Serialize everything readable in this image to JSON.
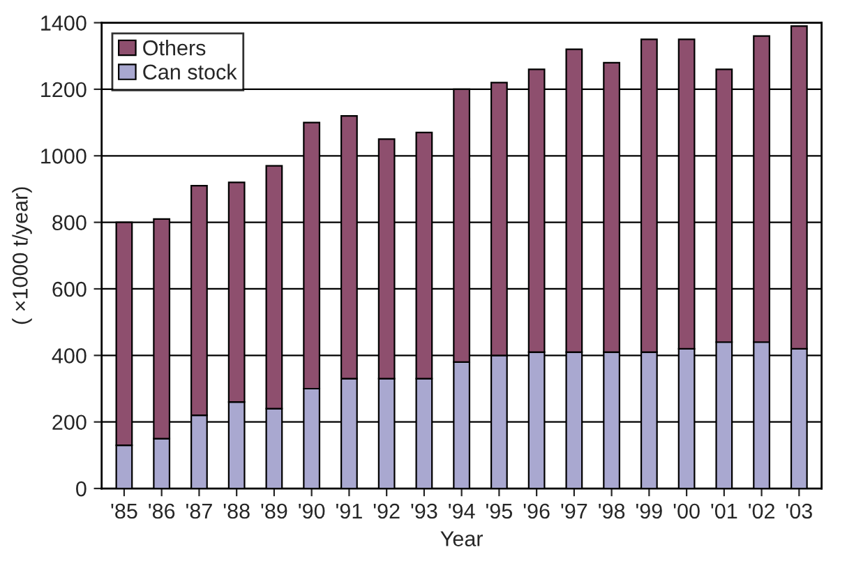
{
  "chart_data": {
    "type": "bar",
    "stacked": true,
    "xlabel": "Year",
    "ylabel": "( ×1000 t/year)",
    "categories": [
      "'85",
      "'86",
      "'87",
      "'88",
      "'89",
      "'90",
      "'91",
      "'92",
      "'93",
      "'94",
      "'95",
      "'96",
      "'97",
      "'98",
      "'99",
      "'00",
      "'01",
      "'02",
      "'03"
    ],
    "series": [
      {
        "name": "Can stock",
        "color": "#a9a8d0",
        "values": [
          130,
          150,
          220,
          260,
          240,
          300,
          330,
          330,
          330,
          380,
          400,
          410,
          410,
          410,
          410,
          420,
          440,
          440,
          420
        ]
      },
      {
        "name": "Others",
        "color": "#8e4f6e",
        "values": [
          670,
          660,
          690,
          660,
          730,
          800,
          790,
          720,
          740,
          820,
          820,
          850,
          910,
          870,
          940,
          930,
          820,
          920,
          970
        ]
      }
    ],
    "ylim": [
      0,
      1400
    ],
    "yticks": [
      0,
      200,
      400,
      600,
      800,
      1000,
      1200,
      1400
    ],
    "grid": "y",
    "legend": "top left"
  }
}
